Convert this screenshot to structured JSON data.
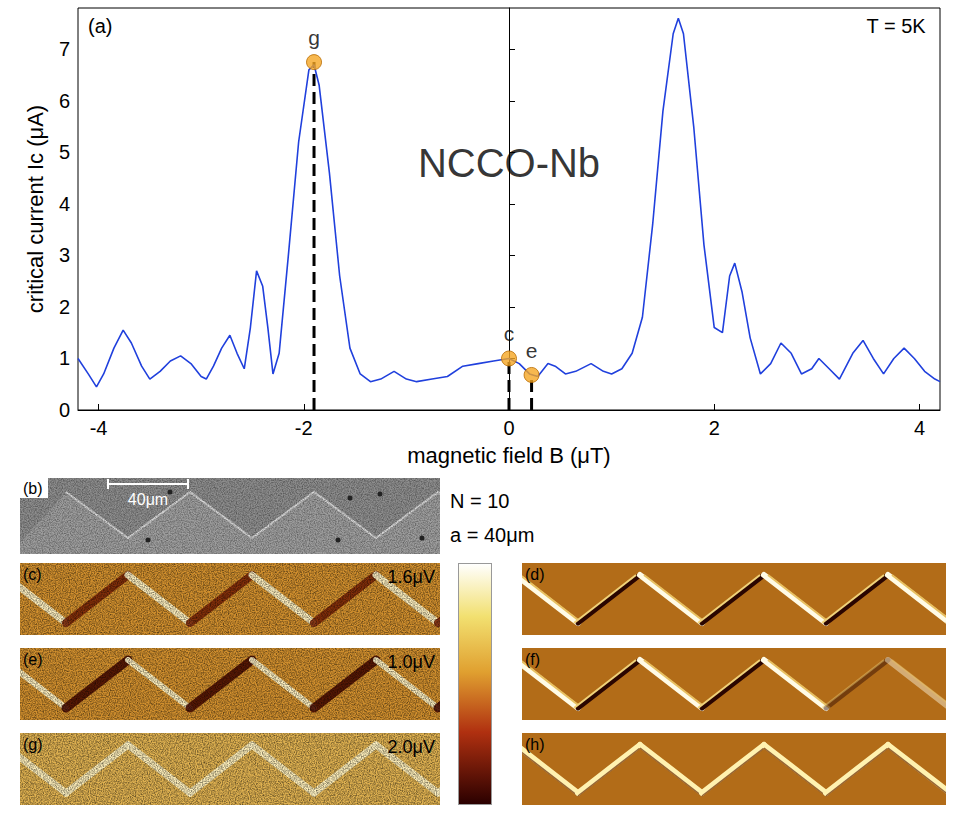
{
  "chart_data": {
    "type": "line",
    "panel_label": "(a)",
    "note": "T = 5K",
    "annotation": {
      "text": "NCCO-Nb",
      "x": 0,
      "y": 4.8
    },
    "x_label": "magnetic field B (μT)",
    "y_label": "critical current Ic (μA)",
    "xlim": [
      -4.2,
      4.2
    ],
    "xticks": [
      -4,
      -2,
      0,
      2,
      4
    ],
    "ylim": [
      0,
      7.8
    ],
    "yticks": [
      0,
      1,
      2,
      3,
      4,
      5,
      6,
      7
    ],
    "grid": false,
    "color": "#2040dd",
    "x": [
      -4.2,
      -4.1,
      -4.02,
      -3.95,
      -3.85,
      -3.76,
      -3.68,
      -3.58,
      -3.5,
      -3.4,
      -3.3,
      -3.2,
      -3.1,
      -3.0,
      -2.95,
      -2.88,
      -2.8,
      -2.72,
      -2.65,
      -2.58,
      -2.52,
      -2.46,
      -2.4,
      -2.35,
      -2.3,
      -2.24,
      -2.15,
      -2.05,
      -1.95,
      -1.9,
      -1.85,
      -1.75,
      -1.65,
      -1.55,
      -1.45,
      -1.35,
      -1.25,
      -1.12,
      -1.0,
      -0.9,
      -0.75,
      -0.6,
      -0.45,
      -0.3,
      -0.15,
      0.0,
      0.1,
      0.2,
      0.28,
      0.38,
      0.45,
      0.55,
      0.65,
      0.8,
      0.92,
      1.0,
      1.1,
      1.2,
      1.3,
      1.4,
      1.5,
      1.6,
      1.65,
      1.7,
      1.8,
      1.9,
      2.0,
      2.08,
      2.15,
      2.2,
      2.27,
      2.35,
      2.45,
      2.55,
      2.65,
      2.75,
      2.85,
      2.95,
      3.02,
      3.12,
      3.22,
      3.35,
      3.45,
      3.55,
      3.65,
      3.75,
      3.85,
      3.95,
      4.05,
      4.15,
      4.2
    ],
    "values": [
      1.0,
      0.7,
      0.45,
      0.7,
      1.2,
      1.55,
      1.3,
      0.85,
      0.6,
      0.75,
      0.95,
      1.05,
      0.9,
      0.65,
      0.6,
      0.85,
      1.2,
      1.45,
      1.1,
      0.8,
      1.6,
      2.7,
      2.4,
      1.6,
      0.7,
      1.1,
      3.0,
      5.2,
      6.6,
      6.7,
      6.3,
      4.6,
      2.6,
      1.2,
      0.7,
      0.55,
      0.6,
      0.75,
      0.6,
      0.55,
      0.6,
      0.65,
      0.85,
      0.9,
      0.95,
      1.0,
      0.9,
      0.7,
      0.65,
      0.9,
      0.85,
      0.7,
      0.75,
      0.9,
      0.75,
      0.7,
      0.8,
      1.1,
      1.8,
      3.6,
      5.8,
      7.3,
      7.6,
      7.3,
      5.5,
      3.2,
      1.6,
      1.5,
      2.6,
      2.85,
      2.3,
      1.4,
      0.7,
      0.9,
      1.3,
      1.1,
      0.7,
      0.8,
      1.0,
      0.8,
      0.6,
      1.1,
      1.35,
      1.0,
      0.7,
      1.0,
      1.2,
      1.0,
      0.75,
      0.6,
      0.55
    ],
    "markers": {
      "color": "#f5a623",
      "line_style": "dashed",
      "points": [
        {
          "label": "g",
          "x": -1.9,
          "y": 6.75
        },
        {
          "label": "c",
          "x": 0,
          "y": 1.0
        },
        {
          "label": "e",
          "x": 0.22,
          "y": 0.68
        }
      ]
    }
  },
  "images": {
    "sem": {
      "label": "(b)",
      "scale_bar": "40μm"
    },
    "info": [
      "N = 10",
      "a = 40μm"
    ],
    "measured": [
      {
        "label": "(c)",
        "voltage": "1.6μV"
      },
      {
        "label": "(e)",
        "voltage": "1.0μV"
      },
      {
        "label": "(g)",
        "voltage": "2.0μV"
      }
    ],
    "simulated": [
      {
        "label": "(d)"
      },
      {
        "label": "(f)"
      },
      {
        "label": "(h)"
      }
    ]
  }
}
